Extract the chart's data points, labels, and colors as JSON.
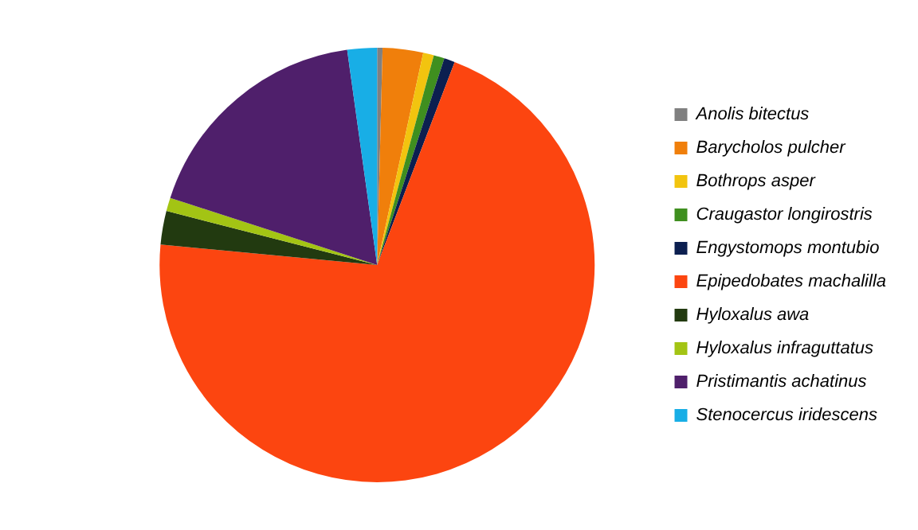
{
  "chart_data": {
    "type": "pie",
    "categories": [
      "Anolis bitectus",
      "Barycholos pulcher",
      "Bothrops asper",
      "Craugastor longirostris",
      "Engystomops montubio",
      "Epipedobates machalilla",
      "Hyloxalus awa",
      "Hyloxalus infraguttatus",
      "Pristimantis achatinus",
      "Stenocercus iridescens"
    ],
    "values": [
      0.4,
      3,
      0.8,
      0.8,
      0.8,
      70.7,
      2.5,
      1,
      17.8,
      2.2
    ],
    "colors": [
      "#808080",
      "#f07f0b",
      "#f2c40f",
      "#3f8f1f",
      "#0c1f50",
      "#fc4510",
      "#223a10",
      "#a3c414",
      "#4f1f6b",
      "#18aee6"
    ],
    "legend": "right"
  }
}
